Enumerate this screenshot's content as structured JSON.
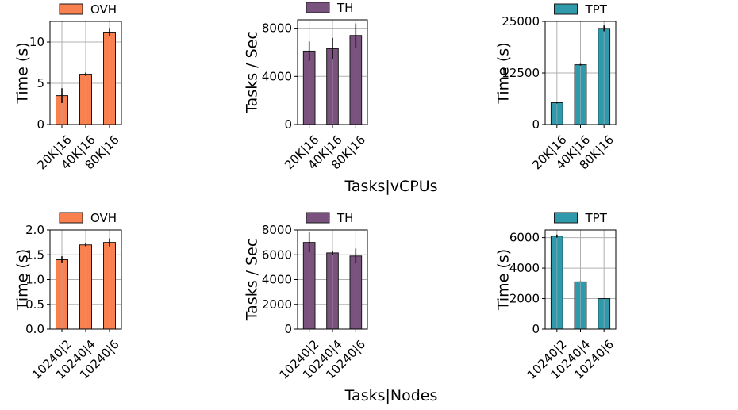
{
  "figure": {
    "row_xlabels": [
      "Tasks|vCPUs",
      "Tasks|Nodes"
    ]
  },
  "colors": {
    "OVH": "#f9804f",
    "TH": "#7a527e",
    "TPT": "#2f9aab",
    "edge": "#1a1a1a",
    "grid": "#b0b0b0"
  },
  "chart_data": [
    {
      "type": "bar",
      "legend": "OVH",
      "ylabel": "Time (s)",
      "categories": [
        "20K|16",
        "40K|16",
        "80K|16"
      ],
      "values": [
        3.5,
        6.1,
        11.2
      ],
      "errors": [
        0.9,
        0.2,
        0.5
      ],
      "ylim": [
        0,
        12.5
      ],
      "yticks": [
        0,
        5,
        10
      ],
      "ytick_labels": [
        "0",
        "5",
        "10"
      ],
      "grid": true
    },
    {
      "type": "bar",
      "legend": "TH",
      "ylabel": "Tasks / Sec",
      "categories": [
        "20K|16",
        "40K|16",
        "80K|16"
      ],
      "values": [
        6100,
        6300,
        7400
      ],
      "errors": [
        800,
        900,
        1000
      ],
      "ylim": [
        0,
        8700
      ],
      "yticks": [
        0,
        4000,
        8000
      ],
      "ytick_labels": [
        "0",
        "4000",
        "8000"
      ],
      "grid": true
    },
    {
      "type": "bar",
      "legend": "TPT",
      "ylabel": "Time (s)",
      "categories": [
        "20K|16",
        "40K|16",
        "80K|16"
      ],
      "values": [
        5300,
        14500,
        23300
      ],
      "errors": [
        200,
        200,
        700
      ],
      "ylim": [
        0,
        25000
      ],
      "yticks": [
        0,
        12500,
        25000
      ],
      "ytick_labels": [
        "0",
        "12500",
        "25000"
      ],
      "grid": true
    },
    {
      "type": "bar",
      "legend": "OVH",
      "ylabel": "Time (s)",
      "categories": [
        "10240|2",
        "10240|4",
        "10240|6"
      ],
      "values": [
        1.4,
        1.7,
        1.75
      ],
      "errors": [
        0.07,
        0.03,
        0.08
      ],
      "ylim": [
        0,
        2.0
      ],
      "yticks": [
        0,
        0.5,
        1.0,
        1.5,
        2.0
      ],
      "ytick_labels": [
        "0.0",
        "0.5",
        "1.0",
        "1.5",
        "2.0"
      ],
      "grid": true
    },
    {
      "type": "bar",
      "legend": "TH",
      "ylabel": "Tasks / Sec",
      "categories": [
        "10240|2",
        "10240|4",
        "10240|6"
      ],
      "values": [
        7000,
        6150,
        5900
      ],
      "errors": [
        800,
        150,
        600
      ],
      "ylim": [
        0,
        8000
      ],
      "yticks": [
        0,
        2000,
        4000,
        6000,
        8000
      ],
      "ytick_labels": [
        "0",
        "2000",
        "4000",
        "6000",
        "8000"
      ],
      "grid": true
    },
    {
      "type": "bar",
      "legend": "TPT",
      "ylabel": "Time (s)",
      "categories": [
        "10240|2",
        "10240|4",
        "10240|6"
      ],
      "values": [
        6100,
        3100,
        2000
      ],
      "errors": [
        100,
        30,
        20
      ],
      "ylim": [
        0,
        6500
      ],
      "yticks": [
        0,
        2000,
        4000,
        6000
      ],
      "ytick_labels": [
        "0",
        "2000",
        "4000",
        "6000"
      ],
      "grid": true
    }
  ]
}
